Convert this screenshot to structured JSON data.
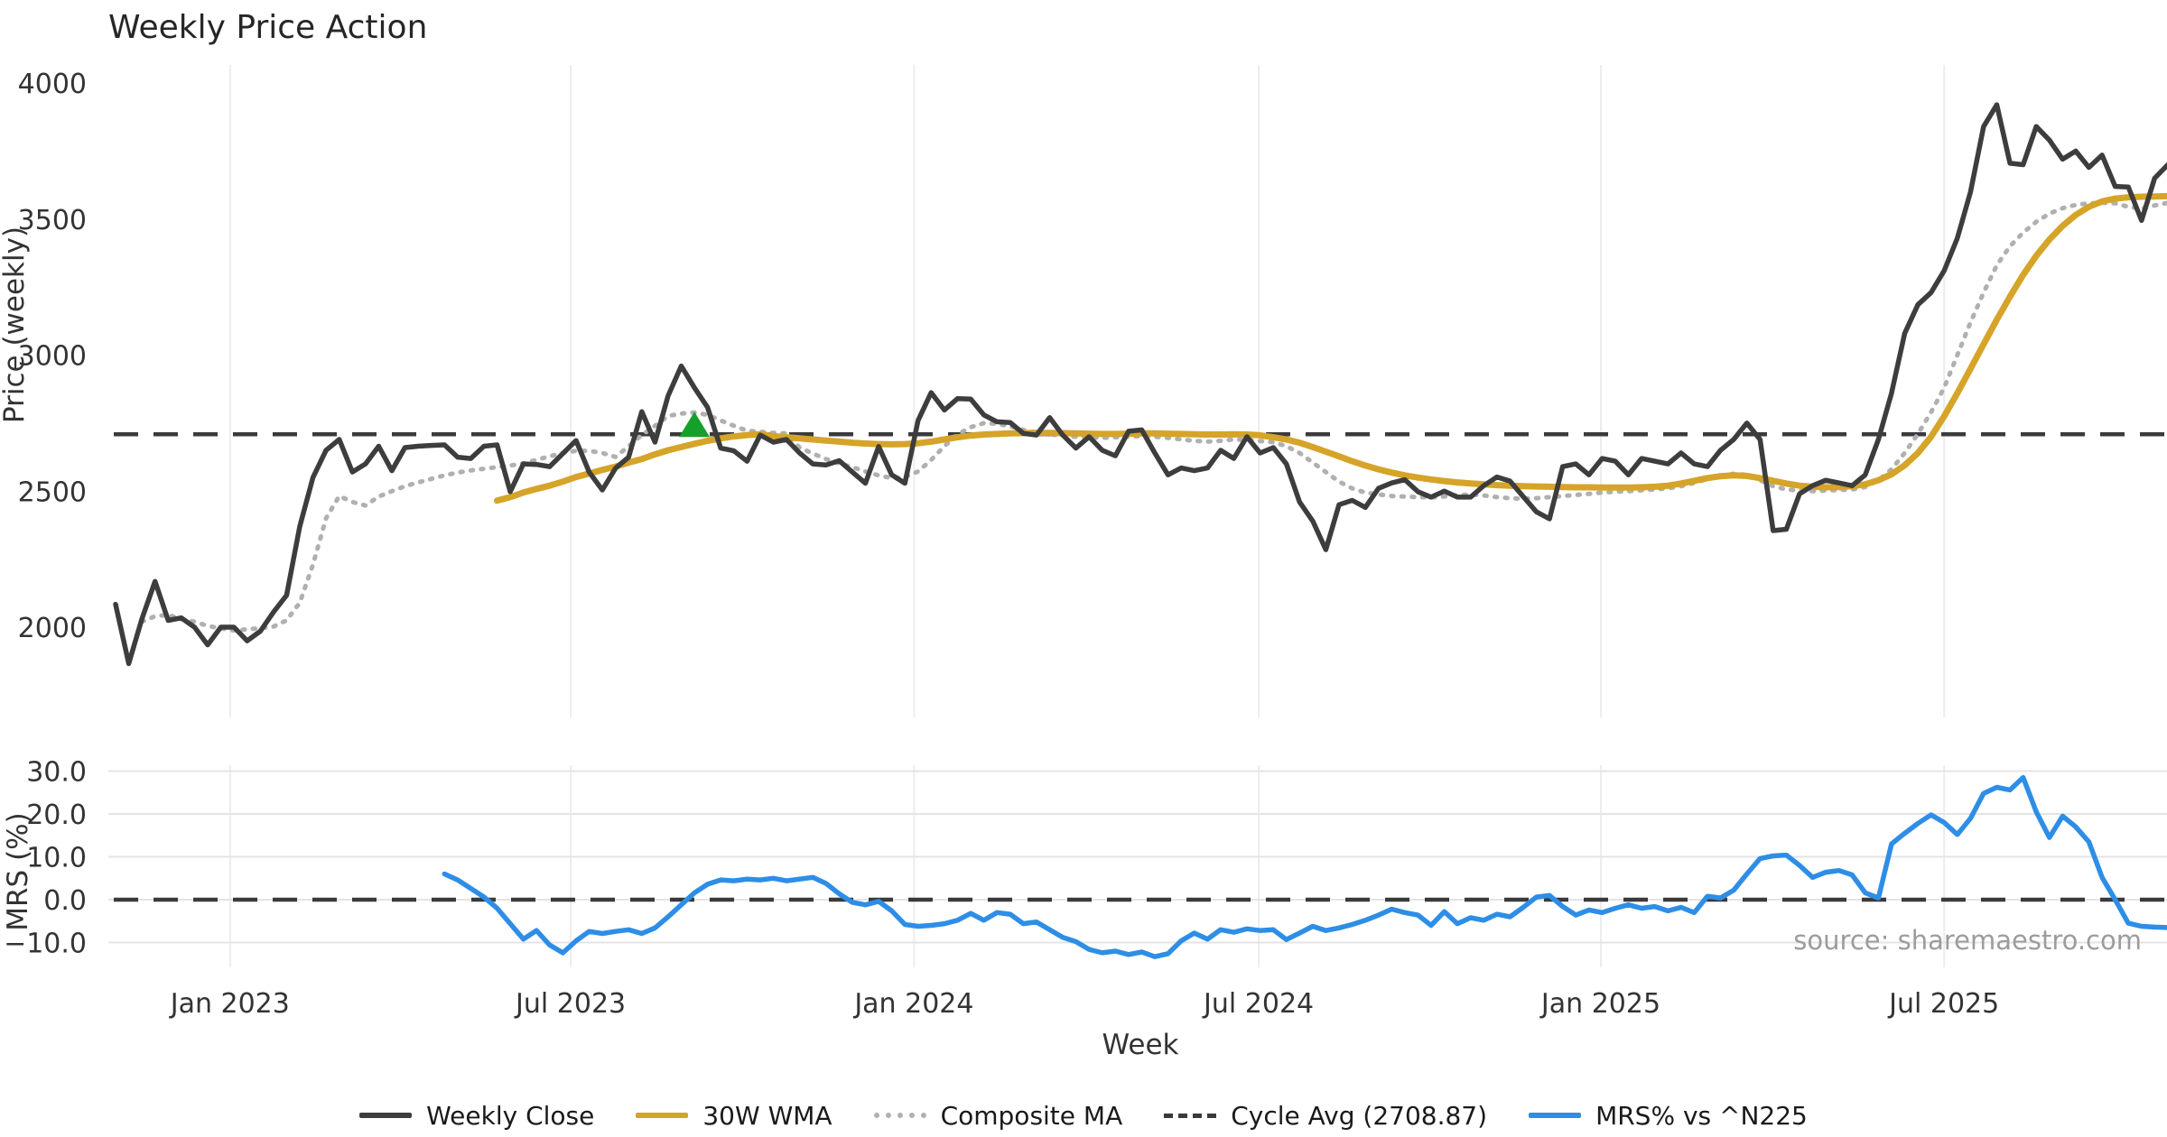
{
  "title": "Weekly Price Action",
  "source_note": "source: sharemaestro.com",
  "colors": {
    "close": "#3d3d3d",
    "wma": "#d5a428",
    "composite": "#b0b0b0",
    "cycle": "#3a3a3a",
    "mrs": "#2e8ee6",
    "marker": "#15a02a",
    "grid": "#ededed",
    "grid_h": "#e4e4e4",
    "text": "#333333",
    "legend_text": "#1a1a1a"
  },
  "legend": [
    {
      "label": "Weekly Close",
      "style": "solid",
      "color_key": "close"
    },
    {
      "label": "30W WMA",
      "style": "solid",
      "color_key": "wma"
    },
    {
      "label": "Composite MA",
      "style": "dotted",
      "color_key": "composite"
    },
    {
      "label": "Cycle Avg (2708.87)",
      "style": "dashed",
      "color_key": "cycle"
    },
    {
      "label": "MRS% vs ^N225",
      "style": "solid",
      "color_key": "mrs"
    }
  ],
  "chart_data": [
    {
      "type": "line",
      "panel": "price",
      "title": "Weekly Price Action",
      "ylabel": "Price (weekly)",
      "ylim": [
        1700,
        4060
      ],
      "yticks": [
        2000,
        2500,
        3000,
        3500,
        4000
      ],
      "xtick_labels": [
        "Jan 2023",
        "Jul 2023",
        "Jan 2024",
        "Jul 2024",
        "Jan 2025",
        "Jul 2025"
      ],
      "xtick_weeks": [
        8.7,
        34.6,
        60.7,
        86.9,
        112.9,
        139.0
      ],
      "cycle_avg": 2708.87,
      "signal_marker": {
        "shape": "triangle-up",
        "week": 44,
        "price": 2742
      },
      "series": [
        {
          "name": "Weekly Close",
          "start_week": 0,
          "values": [
            2084,
            1866,
            2030,
            2168,
            2025,
            2034,
            2000,
            1935,
            2000,
            2000,
            1950,
            1985,
            2055,
            2117,
            2370,
            2550,
            2650,
            2690,
            2570,
            2600,
            2665,
            2575,
            2660,
            2665,
            2668,
            2670,
            2625,
            2620,
            2665,
            2670,
            2498,
            2600,
            2598,
            2590,
            2638,
            2686,
            2570,
            2504,
            2584,
            2625,
            2792,
            2680,
            2850,
            2960,
            2880,
            2808,
            2658,
            2648,
            2610,
            2706,
            2680,
            2690,
            2640,
            2600,
            2596,
            2612,
            2570,
            2529,
            2664,
            2560,
            2529,
            2760,
            2862,
            2798,
            2840,
            2838,
            2780,
            2755,
            2752,
            2712,
            2706,
            2770,
            2706,
            2658,
            2700,
            2650,
            2630,
            2720,
            2725,
            2640,
            2560,
            2585,
            2575,
            2585,
            2650,
            2620,
            2700,
            2640,
            2660,
            2600,
            2460,
            2390,
            2285,
            2450,
            2466,
            2440,
            2510,
            2530,
            2542,
            2498,
            2478,
            2500,
            2478,
            2478,
            2520,
            2552,
            2537,
            2480,
            2424,
            2398,
            2590,
            2600,
            2560,
            2620,
            2610,
            2560,
            2620,
            2610,
            2600,
            2640,
            2600,
            2590,
            2650,
            2690,
            2750,
            2690,
            2355,
            2360,
            2490,
            2520,
            2540,
            2530,
            2520,
            2560,
            2690,
            2860,
            3080,
            3185,
            3230,
            3310,
            3430,
            3600,
            3840,
            3920,
            3705,
            3700,
            3840,
            3790,
            3720,
            3750,
            3690,
            3735,
            3620,
            3618,
            3495,
            3650,
            3700
          ]
        },
        {
          "name": "30W WMA",
          "start_week": 29,
          "values": [
            2465,
            2478,
            2495,
            2508,
            2520,
            2535,
            2552,
            2565,
            2578,
            2590,
            2605,
            2618,
            2635,
            2650,
            2662,
            2674,
            2685,
            2694,
            2701,
            2706,
            2709,
            2702,
            2698,
            2694,
            2690,
            2686,
            2682,
            2678,
            2675,
            2673,
            2672,
            2673,
            2676,
            2682,
            2690,
            2698,
            2704,
            2708,
            2710,
            2712,
            2713,
            2714,
            2714,
            2713,
            2712,
            2711,
            2710,
            2710,
            2711,
            2712,
            2712,
            2711,
            2710,
            2709,
            2708,
            2708,
            2709,
            2708,
            2705,
            2698,
            2690,
            2678,
            2662,
            2645,
            2628,
            2610,
            2594,
            2580,
            2568,
            2558,
            2550,
            2543,
            2537,
            2532,
            2528,
            2525,
            2522,
            2520,
            2518,
            2517,
            2516,
            2515,
            2514,
            2514,
            2513,
            2513,
            2513,
            2514,
            2516,
            2520,
            2528,
            2538,
            2548,
            2555,
            2558,
            2556,
            2548,
            2538,
            2528,
            2520,
            2516,
            2514,
            2515,
            2518,
            2525,
            2540,
            2562,
            2595,
            2640,
            2700,
            2775,
            2860,
            2950,
            3040,
            3130,
            3215,
            3295,
            3365,
            3425,
            3475,
            3515,
            3545,
            3565,
            3575,
            3580,
            3582,
            3583,
            3584
          ]
        },
        {
          "name": "Composite MA",
          "start_week": 2,
          "values": [
            2020,
            2040,
            2045,
            2030,
            2020,
            2005,
            1995,
            1988,
            1992,
            1996,
            2002,
            2025,
            2090,
            2230,
            2400,
            2482,
            2460,
            2447,
            2480,
            2500,
            2518,
            2532,
            2545,
            2558,
            2568,
            2576,
            2582,
            2588,
            2594,
            2602,
            2615,
            2628,
            2640,
            2648,
            2648,
            2640,
            2626,
            2665,
            2706,
            2740,
            2776,
            2785,
            2789,
            2780,
            2760,
            2740,
            2722,
            2718,
            2714,
            2712,
            2660,
            2638,
            2618,
            2602,
            2588,
            2572,
            2558,
            2548,
            2552,
            2572,
            2615,
            2665,
            2708,
            2735,
            2750,
            2748,
            2738,
            2725,
            2715,
            2708,
            2704,
            2700,
            2698,
            2696,
            2698,
            2700,
            2702,
            2700,
            2696,
            2690,
            2685,
            2682,
            2685,
            2690,
            2688,
            2684,
            2680,
            2665,
            2640,
            2605,
            2570,
            2535,
            2510,
            2495,
            2488,
            2482,
            2480,
            2478,
            2477,
            2480,
            2485,
            2488,
            2484,
            2478,
            2474,
            2472,
            2474,
            2478,
            2482,
            2486,
            2490,
            2495,
            2498,
            2500,
            2503,
            2506,
            2510,
            2518,
            2530,
            2545,
            2556,
            2564,
            2560,
            2540,
            2518,
            2506,
            2502,
            2500,
            2502,
            2504,
            2506,
            2515,
            2540,
            2580,
            2640,
            2710,
            2790,
            2880,
            3000,
            3120,
            3230,
            3330,
            3400,
            3450,
            3490,
            3520,
            3540,
            3552,
            3558,
            3560,
            3558,
            3545,
            3538,
            3550,
            3560
          ]
        }
      ]
    },
    {
      "type": "line",
      "panel": "mrs",
      "ylabel": "MRS (%)",
      "xlabel": "Week",
      "ylim": [
        -16.5,
        31.5
      ],
      "yticks": [
        {
          "value": 30,
          "label": "30.0"
        },
        {
          "value": 20,
          "label": "20.0"
        },
        {
          "value": 10,
          "label": "10.0"
        },
        {
          "value": 0,
          "label": "0.0"
        },
        {
          "value": -10,
          "label": "−10.0"
        }
      ],
      "zero_line_dashed": true,
      "series": [
        {
          "name": "MRS% vs ^N225",
          "start_week": 25,
          "values": [
            6.0,
            4.6,
            2.6,
            0.6,
            -2.0,
            -5.6,
            -9.2,
            -7.2,
            -10.6,
            -12.4,
            -9.6,
            -7.4,
            -7.9,
            -7.4,
            -7.0,
            -7.9,
            -6.6,
            -4.0,
            -1.2,
            1.6,
            3.6,
            4.6,
            4.4,
            4.8,
            4.6,
            5.0,
            4.4,
            4.8,
            5.2,
            3.8,
            1.4,
            -0.6,
            -1.2,
            -0.4,
            -2.6,
            -5.8,
            -6.2,
            -6.0,
            -5.6,
            -4.8,
            -3.2,
            -4.8,
            -3.0,
            -3.4,
            -5.6,
            -5.2,
            -7.0,
            -8.8,
            -9.8,
            -11.6,
            -12.4,
            -12.0,
            -12.8,
            -12.2,
            -13.3,
            -12.6,
            -9.6,
            -7.8,
            -9.2,
            -7.0,
            -7.6,
            -6.8,
            -7.2,
            -7.0,
            -9.3,
            -7.8,
            -6.2,
            -7.2,
            -6.6,
            -5.8,
            -4.8,
            -3.6,
            -2.2,
            -3.0,
            -3.6,
            -6.0,
            -2.8,
            -5.6,
            -4.2,
            -4.8,
            -3.4,
            -4.0,
            -1.8,
            0.6,
            1.0,
            -1.6,
            -3.6,
            -2.4,
            -3.0,
            -2.0,
            -1.2,
            -2.0,
            -1.6,
            -2.6,
            -1.8,
            -3.0,
            0.8,
            0.4,
            2.2,
            6.0,
            9.6,
            10.2,
            10.4,
            8.0,
            5.2,
            6.4,
            6.8,
            5.8,
            1.6,
            0.4,
            13.0,
            15.5,
            17.8,
            19.8,
            18.0,
            15.2,
            19.0,
            24.8,
            26.2,
            25.6,
            28.5,
            20.5,
            14.5,
            19.5,
            17.0,
            13.5,
            5.2,
            0.0,
            -5.5,
            -6.2,
            -6.4,
            -6.5
          ]
        }
      ]
    }
  ]
}
